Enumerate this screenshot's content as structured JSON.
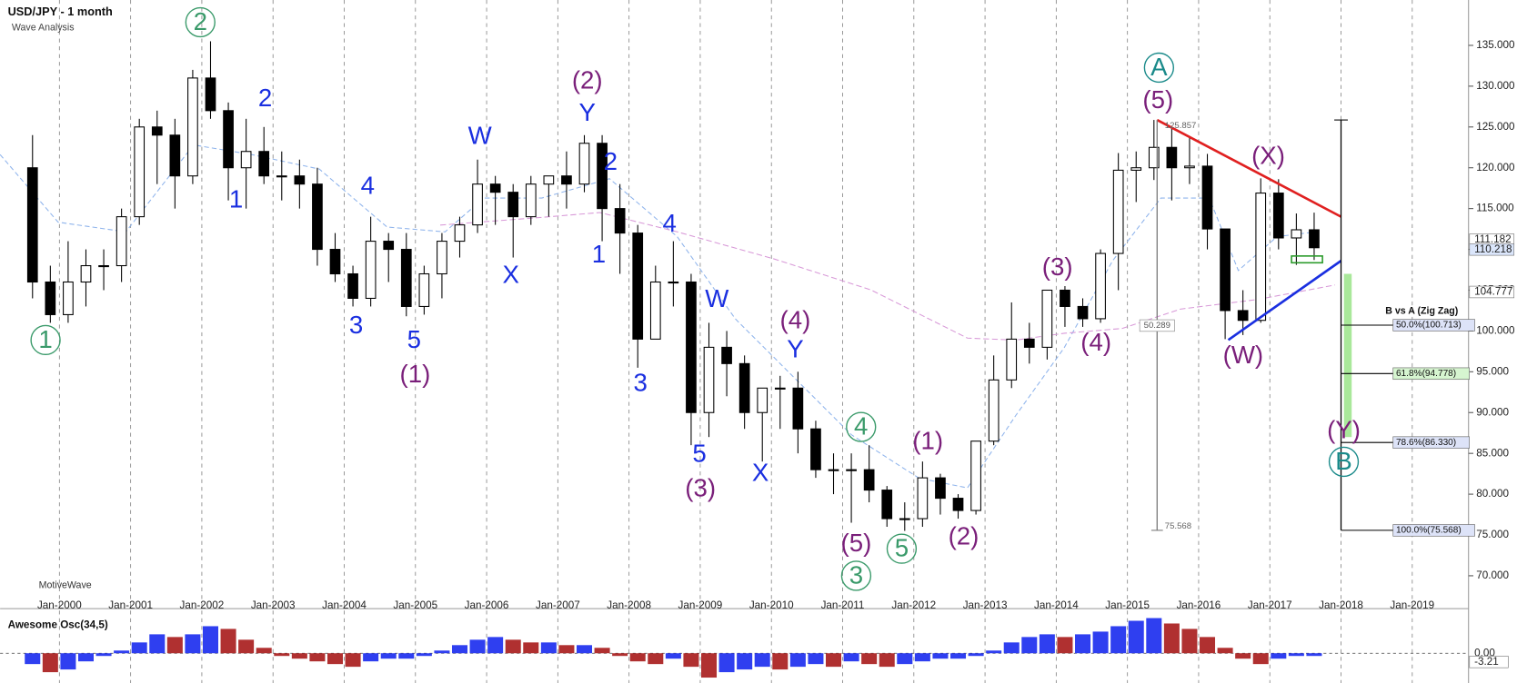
{
  "chart_data": {
    "type": "candlestick",
    "title": "USD/JPY - 1 month",
    "subtitle": "Wave Analysis",
    "watermark": "MotiveWave",
    "xlim": [
      "1999-03",
      "2019-10"
    ],
    "ylim": [
      67.75,
      140.56
    ],
    "grid": true,
    "xticks": [
      {
        "value": "2000-01",
        "label": "Jan-2000"
      },
      {
        "value": "2001-01",
        "label": "Jan-2001"
      },
      {
        "value": "2002-01",
        "label": "Jan-2002"
      },
      {
        "value": "2003-01",
        "label": "Jan-2003"
      },
      {
        "value": "2004-01",
        "label": "Jan-2004"
      },
      {
        "value": "2005-01",
        "label": "Jan-2005"
      },
      {
        "value": "2006-01",
        "label": "Jan-2006"
      },
      {
        "value": "2007-01",
        "label": "Jan-2007"
      },
      {
        "value": "2008-01",
        "label": "Jan-2008"
      },
      {
        "value": "2009-01",
        "label": "Jan-2009"
      },
      {
        "value": "2010-01",
        "label": "Jan-2010"
      },
      {
        "value": "2011-01",
        "label": "Jan-2011"
      },
      {
        "value": "2012-01",
        "label": "Jan-2012"
      },
      {
        "value": "2013-01",
        "label": "Jan-2013"
      },
      {
        "value": "2014-01",
        "label": "Jan-2014"
      },
      {
        "value": "2015-01",
        "label": "Jan-2015"
      },
      {
        "value": "2016-01",
        "label": "Jan-2016"
      },
      {
        "value": "2017-01",
        "label": "Jan-2017"
      },
      {
        "value": "2018-01",
        "label": "Jan-2018"
      },
      {
        "value": "2019-01",
        "label": "Jan-2019"
      }
    ],
    "yticks": [
      {
        "value": 70,
        "label": "70.000"
      },
      {
        "value": 75,
        "label": "75.000"
      },
      {
        "value": 80,
        "label": "80.000"
      },
      {
        "value": 85,
        "label": "85.000"
      },
      {
        "value": 90,
        "label": "90.000"
      },
      {
        "value": 95,
        "label": "95.000"
      },
      {
        "value": 100,
        "label": "100.000"
      },
      {
        "value": 105,
        "label": "105.000"
      },
      {
        "value": 110,
        "label": "110.000"
      },
      {
        "value": 115,
        "label": "115.000"
      },
      {
        "value": 120,
        "label": "120.000"
      },
      {
        "value": 125,
        "label": "125.000"
      },
      {
        "value": 130,
        "label": "130.000"
      },
      {
        "value": 135,
        "label": "135.000"
      }
    ],
    "candles": {
      "x": [
        "1999-07",
        "1999-10",
        "2000-01",
        "2000-04",
        "2000-07",
        "2000-10",
        "2001-01",
        "2001-04",
        "2001-07",
        "2001-10",
        "2002-01",
        "2002-04",
        "2002-07",
        "2002-10",
        "2003-01",
        "2003-04",
        "2003-07",
        "2003-10",
        "2004-01",
        "2004-04",
        "2004-07",
        "2004-10",
        "2005-01",
        "2005-04",
        "2005-07",
        "2005-10",
        "2006-01",
        "2006-04",
        "2006-07",
        "2006-10",
        "2007-01",
        "2007-04",
        "2007-07",
        "2007-10",
        "2008-01",
        "2008-04",
        "2008-07",
        "2008-10",
        "2009-01",
        "2009-04",
        "2009-07",
        "2009-10",
        "2010-01",
        "2010-04",
        "2010-07",
        "2010-10",
        "2011-01",
        "2011-04",
        "2011-07",
        "2011-10",
        "2012-01",
        "2012-04",
        "2012-07",
        "2012-10",
        "2013-01",
        "2013-04",
        "2013-07",
        "2013-10",
        "2014-01",
        "2014-04",
        "2014-07",
        "2014-10",
        "2015-01",
        "2015-04",
        "2015-07",
        "2015-10",
        "2016-01",
        "2016-04",
        "2016-07",
        "2016-10",
        "2017-01",
        "2017-04",
        "2017-07"
      ],
      "open": [
        120,
        106,
        102,
        106,
        108,
        108,
        114,
        125,
        124,
        119,
        131,
        127,
        120,
        122,
        119,
        119,
        118,
        110,
        107,
        104,
        111,
        110,
        103,
        107,
        111,
        113,
        118,
        117,
        114,
        118,
        119,
        118,
        123,
        115,
        112,
        99,
        106,
        106,
        90,
        98,
        96,
        90,
        93,
        93,
        88,
        83,
        83,
        83,
        80.5,
        77,
        77,
        82,
        79.5,
        78,
        86.5,
        94,
        99,
        98,
        105,
        103,
        101.5,
        109.5,
        119.7,
        120,
        122.5,
        120,
        120.2,
        112.5,
        102.5,
        101.3,
        116.9,
        111.4,
        112.4
      ],
      "high": [
        124,
        108,
        111,
        110,
        110,
        115,
        126,
        127,
        126,
        132,
        135.5,
        128,
        126,
        125,
        122,
        121,
        120,
        112,
        108,
        114,
        112,
        112,
        108,
        112,
        114,
        121,
        119,
        118,
        119,
        119,
        122,
        124,
        124,
        118,
        113,
        108,
        111,
        107,
        101,
        100,
        97,
        93,
        94.5,
        95,
        89,
        85,
        85,
        86,
        81,
        79,
        84,
        82.5,
        80,
        86.5,
        97,
        103.5,
        101,
        105,
        105.5,
        104,
        110,
        121.8,
        122,
        125.86,
        125,
        123.7,
        121.7,
        112.5,
        105,
        118.7,
        118.6,
        114.4,
        114.5
      ],
      "low": [
        104,
        101,
        101,
        103,
        105,
        106,
        113,
        118,
        115,
        118,
        126,
        116,
        115,
        118,
        116,
        115,
        108,
        106,
        103,
        103,
        106,
        101.8,
        102,
        104,
        109,
        112,
        113,
        109,
        113,
        114,
        115,
        117,
        111,
        107,
        95.5,
        99,
        103,
        86,
        87,
        92,
        88,
        84,
        88,
        85,
        82,
        80,
        76.5,
        79,
        76,
        75.5,
        76,
        77.5,
        77,
        77.5,
        86,
        93,
        96,
        96.5,
        100.5,
        100.5,
        101,
        105,
        115.8,
        118.5,
        116,
        118,
        110,
        99,
        99.5,
        101,
        110,
        108.1,
        108.7
      ],
      "close": [
        106,
        102,
        106,
        108,
        108,
        114,
        125,
        124,
        119,
        131,
        127,
        120,
        122,
        119,
        119,
        118,
        110,
        107,
        104,
        111,
        110,
        103,
        107,
        111,
        113,
        118,
        117,
        114,
        118,
        119,
        118,
        123,
        115,
        112,
        99,
        106,
        106,
        90,
        98,
        96,
        90,
        93,
        93,
        88,
        83,
        83,
        83,
        80.5,
        77,
        77,
        82,
        79.5,
        78,
        86.5,
        94,
        99,
        98,
        105,
        103,
        101.5,
        109.5,
        119.7,
        120,
        122.5,
        120,
        120.2,
        112.5,
        102.5,
        101.3,
        116.9,
        111.4,
        112.4,
        110.2
      ]
    },
    "price_tags": [
      111.182,
      110.218,
      104.777
    ],
    "measure_labels": [
      125.857,
      50.289,
      75.568
    ],
    "fib_title": "B vs A (Zig Zag)",
    "fib_levels": [
      {
        "value": 100.713,
        "label": "50.0%(100.713)"
      },
      {
        "value": 94.778,
        "label": "61.8%(94.778)"
      },
      {
        "value": 86.33,
        "label": "78.6%(86.330)"
      },
      {
        "value": 75.568,
        "label": "100.0%(75.568)"
      }
    ],
    "lines": [
      {
        "color": "#e02020",
        "x": [
          "2015-06",
          "2018-01"
        ],
        "y": [
          125.86,
          114.0
        ]
      },
      {
        "color": "#1a2fe0",
        "x": [
          "2016-06",
          "2018-01"
        ],
        "y": [
          98.9,
          108.6
        ]
      }
    ],
    "annotations": [
      {
        "text": "1",
        "color": "#3a9a6a",
        "circle": true
      },
      {
        "text": "2",
        "color": "#3a9a6a",
        "circle": true
      },
      {
        "text": "3",
        "color": "#3a9a6a",
        "circle": true
      },
      {
        "text": "4",
        "color": "#3a9a6a",
        "circle": true
      },
      {
        "text": "5",
        "color": "#3a9a6a",
        "circle": true
      },
      {
        "text": "2",
        "color": "#1a2fe0"
      },
      {
        "text": "1",
        "color": "#1a2fe0"
      },
      {
        "text": "4",
        "color": "#1a2fe0"
      },
      {
        "text": "3",
        "color": "#1a2fe0"
      },
      {
        "text": "5",
        "color": "#1a2fe0"
      },
      {
        "text": "W",
        "color": "#1a2fe0"
      },
      {
        "text": "X",
        "color": "#1a2fe0"
      },
      {
        "text": "Y",
        "color": "#1a2fe0"
      },
      {
        "text": "2",
        "color": "#1a2fe0"
      },
      {
        "text": "1",
        "color": "#1a2fe0"
      },
      {
        "text": "4",
        "color": "#1a2fe0"
      },
      {
        "text": "3",
        "color": "#1a2fe0"
      },
      {
        "text": "W",
        "color": "#1a2fe0"
      },
      {
        "text": "5",
        "color": "#1a2fe0"
      },
      {
        "text": "Y",
        "color": "#1a2fe0"
      },
      {
        "text": "X",
        "color": "#1a2fe0"
      },
      {
        "text": "(1)",
        "color": "#7a1f7a"
      },
      {
        "text": "(2)",
        "color": "#7a1f7a"
      },
      {
        "text": "(3)",
        "color": "#7a1f7a"
      },
      {
        "text": "(4)",
        "color": "#7a1f7a"
      },
      {
        "text": "(5)",
        "color": "#7a1f7a"
      },
      {
        "text": "(1)",
        "color": "#7a1f7a"
      },
      {
        "text": "(2)",
        "color": "#7a1f7a"
      },
      {
        "text": "(3)",
        "color": "#7a1f7a"
      },
      {
        "text": "(4)",
        "color": "#7a1f7a"
      },
      {
        "text": "(5)",
        "color": "#7a1f7a"
      },
      {
        "text": "(X)",
        "color": "#7a1f7a"
      },
      {
        "text": "(W)",
        "color": "#7a1f7a"
      },
      {
        "text": "(Y)",
        "color": "#7a1f7a"
      },
      {
        "text": "A",
        "color": "#1a8a8a",
        "circle": true
      },
      {
        "text": "B",
        "color": "#1a8a8a",
        "circle": true
      }
    ],
    "oscillator": {
      "title": "Awesome Osc(34,5)",
      "ylim": [
        -11,
        14
      ],
      "yticks": [
        {
          "value": 0,
          "label": "0.00"
        }
      ],
      "last": -3.21,
      "up_color": "#2f3ff0",
      "down_color": "#b03030",
      "values": [
        -4,
        -7,
        -6,
        -3,
        -1,
        1,
        4,
        7,
        6,
        7,
        10,
        9,
        5,
        2,
        -1,
        -2,
        -3,
        -4,
        -5,
        -3,
        -2,
        -2,
        -1,
        1,
        3,
        5,
        6,
        5,
        4,
        4,
        3,
        3,
        2,
        -1,
        -3,
        -4,
        -2,
        -5,
        -9,
        -7,
        -6,
        -5,
        -6,
        -5,
        -4,
        -5,
        -3,
        -4,
        -5,
        -4,
        -3,
        -2,
        -2,
        -1,
        1,
        4,
        6,
        7,
        6,
        7,
        8,
        10,
        12,
        13,
        11,
        9,
        6,
        2,
        -2,
        -4,
        -2,
        -1,
        -1
      ]
    }
  }
}
